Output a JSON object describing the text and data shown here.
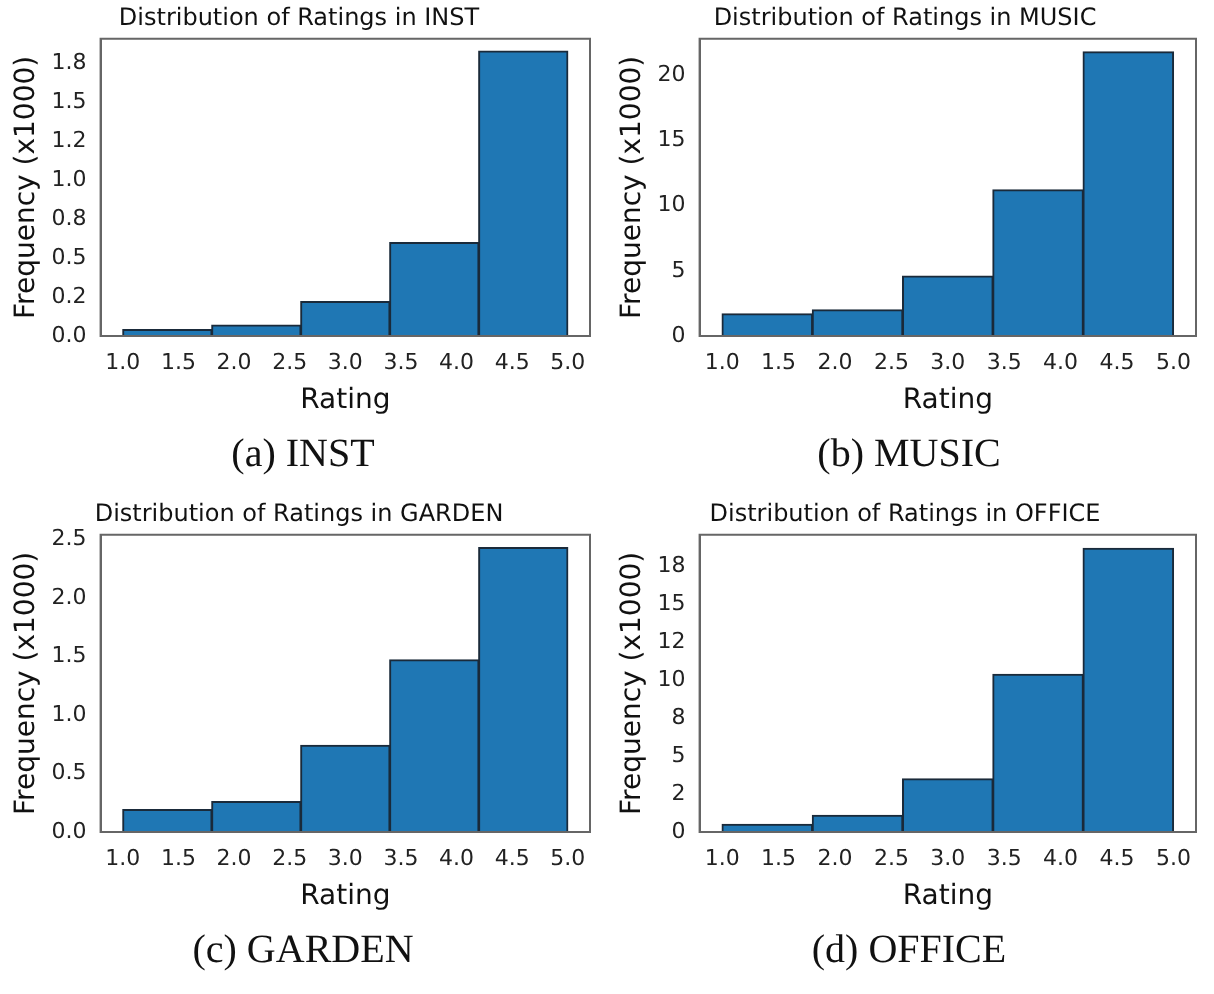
{
  "chart_data": [
    {
      "type": "histogram",
      "title": "Distribution of Ratings in INST",
      "xlabel": "Rating",
      "ylabel": "Frequency (x1000)",
      "bins": [
        1.0,
        1.8,
        2.6,
        3.4,
        4.2,
        5.0
      ],
      "values": [
        0.04,
        0.07,
        0.22,
        0.6,
        1.83
      ],
      "color": "#1f77b4",
      "xlim": [
        0.8,
        5.2
      ],
      "xticks": [
        {
          "value": 1,
          "label": "1.0"
        },
        1.5,
        {
          "value": 2,
          "label": "2.0"
        },
        2.5,
        {
          "value": 3,
          "label": "3.0"
        },
        3.5,
        {
          "value": 4,
          "label": "4.0"
        },
        4.5,
        {
          "value": 5,
          "label": "5.0"
        }
      ],
      "ylim": [
        0,
        1.91
      ],
      "yticks": [
        {
          "value": 0,
          "label": "0.0"
        },
        {
          "value": 0.25,
          "label": "0.2"
        },
        {
          "value": 0.5,
          "label": "0.5"
        },
        {
          "value": 0.75,
          "label": "0.8"
        },
        {
          "value": 1,
          "label": "1.0"
        },
        {
          "value": 1.25,
          "label": "1.2"
        },
        {
          "value": 1.5,
          "label": "1.5"
        },
        {
          "value": 1.75,
          "label": "1.8"
        }
      ],
      "grid": false,
      "annotations": [
        "(a) INST"
      ]
    },
    {
      "type": "histogram",
      "title": "Distribution of Ratings in MUSIC",
      "xlabel": "Rating",
      "ylabel": "Frequency (x1000)",
      "bins": [
        1.0,
        1.8,
        2.6,
        3.4,
        4.2,
        5.0
      ],
      "values": [
        1.7,
        2.0,
        4.6,
        11.2,
        21.8
      ],
      "color": "#1f77b4",
      "xlim": [
        0.8,
        5.2
      ],
      "xticks": [
        {
          "value": 1,
          "label": "1.0"
        },
        1.5,
        {
          "value": 2,
          "label": "2.0"
        },
        2.5,
        {
          "value": 3,
          "label": "3.0"
        },
        3.5,
        {
          "value": 4,
          "label": "4.0"
        },
        4.5,
        {
          "value": 5,
          "label": "5.0"
        }
      ],
      "ylim": [
        0,
        22.8
      ],
      "yticks": [
        0,
        5,
        10,
        15,
        20
      ],
      "grid": false,
      "annotations": [
        "(b) MUSIC"
      ]
    },
    {
      "type": "histogram",
      "title": "Distribution of Ratings in GARDEN",
      "xlabel": "Rating",
      "ylabel": "Frequency (x1000)",
      "bins": [
        1.0,
        1.8,
        2.6,
        3.4,
        4.2,
        5.0
      ],
      "values": [
        0.19,
        0.26,
        0.74,
        1.47,
        2.43
      ],
      "color": "#1f77b4",
      "xlim": [
        0.8,
        5.2
      ],
      "xticks": [
        {
          "value": 1,
          "label": "1.0"
        },
        1.5,
        {
          "value": 2,
          "label": "2.0"
        },
        2.5,
        {
          "value": 3,
          "label": "3.0"
        },
        3.5,
        {
          "value": 4,
          "label": "4.0"
        },
        4.5,
        {
          "value": 5,
          "label": "5.0"
        }
      ],
      "ylim": [
        0,
        2.54
      ],
      "yticks": [
        {
          "value": 0,
          "label": "0.0"
        },
        0.5,
        {
          "value": 1,
          "label": "1.0"
        },
        1.5,
        {
          "value": 2,
          "label": "2.0"
        },
        2.5
      ],
      "grid": false,
      "annotations": [
        "(c) GARDEN"
      ]
    },
    {
      "type": "histogram",
      "title": "Distribution of Ratings in OFFICE",
      "xlabel": "Rating",
      "ylabel": "Frequency (x1000)",
      "bins": [
        1.0,
        1.8,
        2.6,
        3.4,
        4.2,
        5.0
      ],
      "values": [
        0.5,
        1.1,
        3.5,
        10.4,
        18.7
      ],
      "color": "#1f77b4",
      "xlim": [
        0.8,
        5.2
      ],
      "xticks": [
        {
          "value": 1,
          "label": "1.0"
        },
        1.5,
        {
          "value": 2,
          "label": "2.0"
        },
        2.5,
        {
          "value": 3,
          "label": "3.0"
        },
        3.5,
        {
          "value": 4,
          "label": "4.0"
        },
        4.5,
        {
          "value": 5,
          "label": "5.0"
        }
      ],
      "ylim": [
        0,
        19.6
      ],
      "yticks": [
        0,
        {
          "value": 2.5,
          "label": "2"
        },
        5,
        {
          "value": 7.5,
          "label": "8"
        },
        10,
        {
          "value": 12.5,
          "label": "12"
        },
        15,
        {
          "value": 17.5,
          "label": "18"
        }
      ],
      "grid": false,
      "annotations": [
        "(d) OFFICE"
      ]
    }
  ]
}
